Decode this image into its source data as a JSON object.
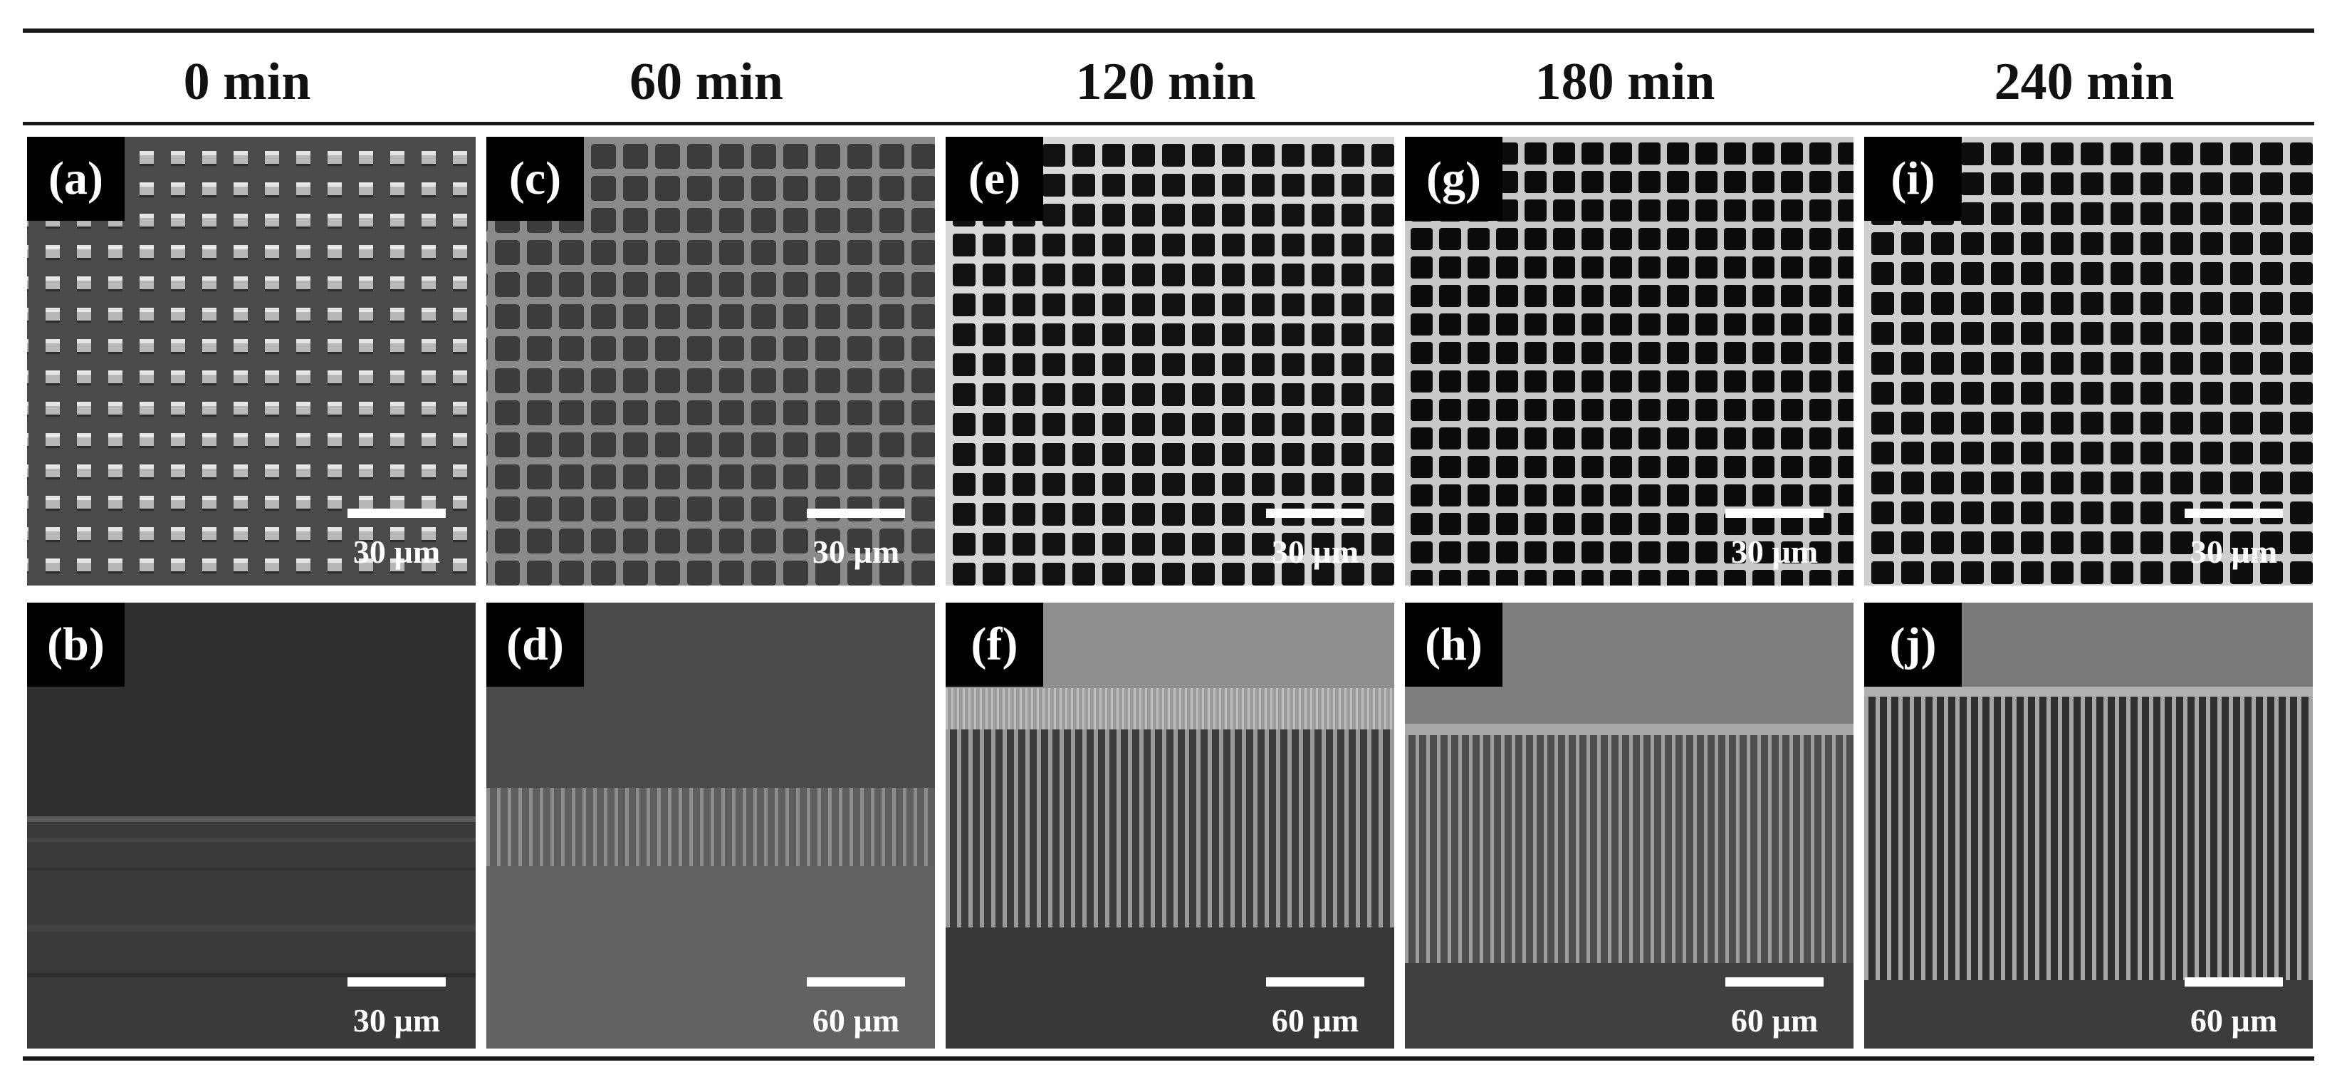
{
  "columns": [
    {
      "time": "0 min"
    },
    {
      "time": "60 min"
    },
    {
      "time": "120 min"
    },
    {
      "time": "180 min"
    },
    {
      "time": "240 min"
    }
  ],
  "top_panels": [
    {
      "label": "(a)",
      "scale": "30 µm",
      "view": "top-view pillar array"
    },
    {
      "label": "(c)",
      "scale": "30 µm",
      "view": "top-view square grid"
    },
    {
      "label": "(e)",
      "scale": "30 µm",
      "view": "top-view square grid"
    },
    {
      "label": "(g)",
      "scale": "30 µm",
      "view": "top-view square grid"
    },
    {
      "label": "(i)",
      "scale": "30 µm",
      "view": "top-view square grid"
    }
  ],
  "bottom_panels": [
    {
      "label": "(b)",
      "scale": "30 µm",
      "wall_fraction": 0.02
    },
    {
      "label": "(d)",
      "scale": "60 µm",
      "wall_fraction": 0.18
    },
    {
      "label": "(f)",
      "scale": "60 µm",
      "wall_fraction": 0.44
    },
    {
      "label": "(h)",
      "scale": "60 µm",
      "wall_fraction": 0.52
    },
    {
      "label": "(j)",
      "scale": "60 µm",
      "wall_fraction": 0.64
    }
  ]
}
